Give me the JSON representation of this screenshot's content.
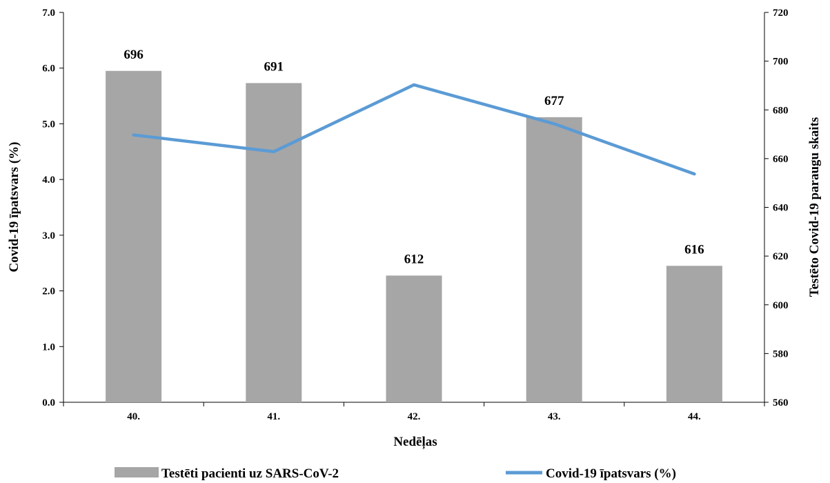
{
  "chart_data": {
    "type": "bar",
    "categories": [
      "40.",
      "41.",
      "42.",
      "43.",
      "44."
    ],
    "xlabel": "Nedēļas",
    "ylabel_left": "Covid-19 īpatsvars (%)",
    "ylabel_right": "Testēto Covid-19  paraugu skaits",
    "ylim_left": [
      0,
      7
    ],
    "yticks_left": [
      "0.0",
      "1.0",
      "2.0",
      "3.0",
      "4.0",
      "5.0",
      "6.0",
      "7.0"
    ],
    "ylim_right": [
      560,
      720
    ],
    "yticks_right": [
      "560",
      "580",
      "600",
      "620",
      "640",
      "660",
      "680",
      "700",
      "720"
    ],
    "series": [
      {
        "name": "Testēti pacienti uz SARS-CoV-2",
        "kind": "bar",
        "axis": "right",
        "color": "#a6a6a6",
        "values": [
          696,
          691,
          612,
          677,
          616
        ],
        "labels": [
          "696",
          "691",
          "612",
          "677",
          "616"
        ]
      },
      {
        "name": "Covid-19 īpatsvars (%)",
        "kind": "line",
        "axis": "left",
        "color": "#5b9bd5",
        "values": [
          4.8,
          4.5,
          5.7,
          5.0,
          4.1
        ]
      }
    ],
    "legend_position": "bottom",
    "grid": false
  }
}
